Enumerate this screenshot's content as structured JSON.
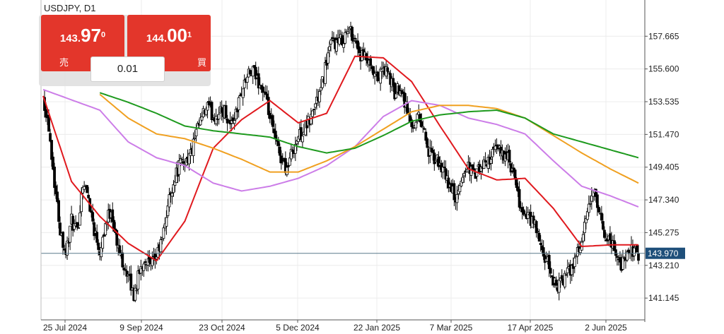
{
  "title": "USDJPY, D1",
  "trade_panel": {
    "sell": {
      "big_part": "143.",
      "emphasis": "97",
      "small": "0",
      "label": "売"
    },
    "buy": {
      "big_part": "144.",
      "emphasis": "00",
      "small": "1",
      "label": "買"
    },
    "lot_size": "0.01"
  },
  "colors": {
    "up_candle": "#ffffff",
    "down_candle": "#000000",
    "ma_red": "#e0191e",
    "ma_violet": "#cc7de8",
    "ma_orange": "#f0a020",
    "ma_green": "#1e9a1e",
    "current_price_line": "#5a7a8c",
    "current_price_tag": "#1e4f7a",
    "button_red": "#e3362b"
  },
  "chart_data": {
    "type": "candlestick",
    "symbol": "USDJPY",
    "timeframe": "D1",
    "y_ticks": [
      141.145,
      143.21,
      145.275,
      147.34,
      149.405,
      151.47,
      153.535,
      155.6,
      157.665
    ],
    "y_tick_labels": [
      "141.145",
      "143.210",
      "145.275",
      "147.340",
      "149.405",
      "151.470",
      "153.535",
      "155.600",
      "157.665"
    ],
    "ylim": [
      139.77,
      159.95
    ],
    "x_tick_labels": [
      "25 Jul 2024",
      "9 Sep 2024",
      "23 Oct 2024",
      "5 Dec 2024",
      "22 Jan 2025",
      "7 Mar 2025",
      "17 Apr 2025",
      "2 Jun 2025"
    ],
    "current_price": 143.97,
    "current_price_label": "143.970",
    "close_path": [
      [
        0,
        153.9
      ],
      [
        4,
        152.0
      ],
      [
        8,
        148.5
      ],
      [
        12,
        145.5
      ],
      [
        16,
        144.0
      ],
      [
        20,
        146.0
      ],
      [
        24,
        145.2
      ],
      [
        28,
        148.5
      ],
      [
        32,
        147.5
      ],
      [
        36,
        145.5
      ],
      [
        40,
        144.2
      ],
      [
        44,
        145.8
      ],
      [
        48,
        146.8
      ],
      [
        52,
        144.5
      ],
      [
        56,
        143.5
      ],
      [
        60,
        142.5
      ],
      [
        64,
        141.3
      ],
      [
        68,
        142.8
      ],
      [
        72,
        143.7
      ],
      [
        76,
        143.0
      ],
      [
        80,
        143.8
      ],
      [
        84,
        144.8
      ],
      [
        88,
        147.0
      ],
      [
        92,
        148.5
      ],
      [
        96,
        149.5
      ],
      [
        100,
        149.8
      ],
      [
        104,
        150.2
      ],
      [
        108,
        151.5
      ],
      [
        112,
        152.5
      ],
      [
        116,
        153.2
      ],
      [
        120,
        152.6
      ],
      [
        124,
        152.8
      ],
      [
        128,
        153.0
      ],
      [
        132,
        152.1
      ],
      [
        136,
        152.8
      ],
      [
        140,
        154.2
      ],
      [
        144,
        155.1
      ],
      [
        148,
        155.4
      ],
      [
        152,
        154.8
      ],
      [
        156,
        154.0
      ],
      [
        160,
        152.5
      ],
      [
        164,
        151.0
      ],
      [
        168,
        150.0
      ],
      [
        172,
        149.3
      ],
      [
        176,
        150.5
      ],
      [
        180,
        151.3
      ],
      [
        184,
        151.8
      ],
      [
        188,
        152.3
      ],
      [
        192,
        153.4
      ],
      [
        196,
        154.2
      ],
      [
        200,
        156.2
      ],
      [
        204,
        157.3
      ],
      [
        208,
        157.2
      ],
      [
        212,
        157.6
      ],
      [
        216,
        158.1
      ],
      [
        220,
        157.5
      ],
      [
        224,
        156.4
      ],
      [
        228,
        156.2
      ],
      [
        232,
        155.3
      ],
      [
        236,
        154.9
      ],
      [
        240,
        155.6
      ],
      [
        244,
        155.2
      ],
      [
        248,
        154.0
      ],
      [
        252,
        154.6
      ],
      [
        256,
        153.3
      ],
      [
        260,
        151.9
      ],
      [
        264,
        152.7
      ],
      [
        268,
        152.1
      ],
      [
        272,
        150.3
      ],
      [
        276,
        149.9
      ],
      [
        280,
        149.6
      ],
      [
        284,
        148.7
      ],
      [
        288,
        148.0
      ],
      [
        292,
        147.3
      ],
      [
        296,
        148.9
      ],
      [
        300,
        149.5
      ],
      [
        304,
        148.9
      ],
      [
        308,
        149.2
      ],
      [
        312,
        149.6
      ],
      [
        316,
        150.1
      ],
      [
        320,
        150.5
      ],
      [
        324,
        150.4
      ],
      [
        328,
        149.9
      ],
      [
        332,
        148.8
      ],
      [
        336,
        147.1
      ],
      [
        340,
        146.3
      ],
      [
        344,
        146.1
      ],
      [
        348,
        145.5
      ],
      [
        352,
        143.9
      ],
      [
        356,
        143.3
      ],
      [
        360,
        142.2
      ],
      [
        364,
        141.9
      ],
      [
        368,
        142.5
      ],
      [
        372,
        142.9
      ],
      [
        376,
        143.9
      ],
      [
        380,
        144.7
      ],
      [
        384,
        146.4
      ],
      [
        388,
        148.0
      ],
      [
        392,
        146.4
      ],
      [
        396,
        145.2
      ],
      [
        400,
        144.8
      ],
      [
        404,
        144.1
      ],
      [
        408,
        143.2
      ],
      [
        412,
        143.8
      ],
      [
        416,
        144.2
      ],
      [
        420,
        143.97
      ]
    ],
    "moving_averages": [
      {
        "color": "#e0191e",
        "path": [
          [
            0,
            153.9
          ],
          [
            20,
            148.5
          ],
          [
            40,
            146.3
          ],
          [
            60,
            144.6
          ],
          [
            80,
            143.5
          ],
          [
            100,
            146.0
          ],
          [
            120,
            150.6
          ],
          [
            140,
            152.4
          ],
          [
            160,
            153.6
          ],
          [
            180,
            152.2
          ],
          [
            200,
            152.8
          ],
          [
            220,
            156.4
          ],
          [
            240,
            156.3
          ],
          [
            260,
            154.8
          ],
          [
            280,
            152.0
          ],
          [
            300,
            149.3
          ],
          [
            320,
            148.6
          ],
          [
            340,
            148.7
          ],
          [
            360,
            146.8
          ],
          [
            380,
            144.4
          ],
          [
            400,
            144.5
          ],
          [
            420,
            144.5
          ]
        ]
      },
      {
        "color": "#cc7de8",
        "path": [
          [
            0,
            154.3
          ],
          [
            40,
            153.0
          ],
          [
            60,
            151.0
          ],
          [
            80,
            150.0
          ],
          [
            100,
            149.5
          ],
          [
            120,
            148.4
          ],
          [
            140,
            147.9
          ],
          [
            160,
            148.2
          ],
          [
            180,
            148.7
          ],
          [
            200,
            149.5
          ],
          [
            220,
            150.7
          ],
          [
            240,
            152.6
          ],
          [
            260,
            153.6
          ],
          [
            280,
            153.3
          ],
          [
            300,
            152.5
          ],
          [
            320,
            152.1
          ],
          [
            340,
            151.5
          ],
          [
            360,
            149.8
          ],
          [
            380,
            148.2
          ],
          [
            400,
            147.6
          ],
          [
            420,
            146.9
          ]
        ]
      },
      {
        "color": "#f0a020",
        "path": [
          [
            40,
            154.0
          ],
          [
            60,
            152.5
          ],
          [
            80,
            151.5
          ],
          [
            100,
            151.2
          ],
          [
            120,
            150.6
          ],
          [
            140,
            149.9
          ],
          [
            160,
            149.1
          ],
          [
            180,
            149.1
          ],
          [
            200,
            149.8
          ],
          [
            220,
            150.7
          ],
          [
            240,
            151.8
          ],
          [
            260,
            152.9
          ],
          [
            280,
            153.3
          ],
          [
            300,
            153.3
          ],
          [
            320,
            153.1
          ],
          [
            340,
            152.5
          ],
          [
            360,
            151.4
          ],
          [
            380,
            150.3
          ],
          [
            400,
            149.3
          ],
          [
            420,
            148.4
          ]
        ]
      },
      {
        "color": "#1e9a1e",
        "path": [
          [
            40,
            154.1
          ],
          [
            60,
            153.5
          ],
          [
            80,
            152.8
          ],
          [
            100,
            152.0
          ],
          [
            120,
            151.7
          ],
          [
            140,
            151.5
          ],
          [
            160,
            151.3
          ],
          [
            180,
            150.7
          ],
          [
            200,
            150.3
          ],
          [
            220,
            150.6
          ],
          [
            240,
            151.4
          ],
          [
            260,
            152.3
          ],
          [
            280,
            152.7
          ],
          [
            300,
            152.9
          ],
          [
            320,
            153.0
          ],
          [
            340,
            152.5
          ],
          [
            360,
            151.5
          ],
          [
            380,
            151.0
          ],
          [
            400,
            150.5
          ],
          [
            420,
            150.0
          ]
        ]
      }
    ]
  }
}
